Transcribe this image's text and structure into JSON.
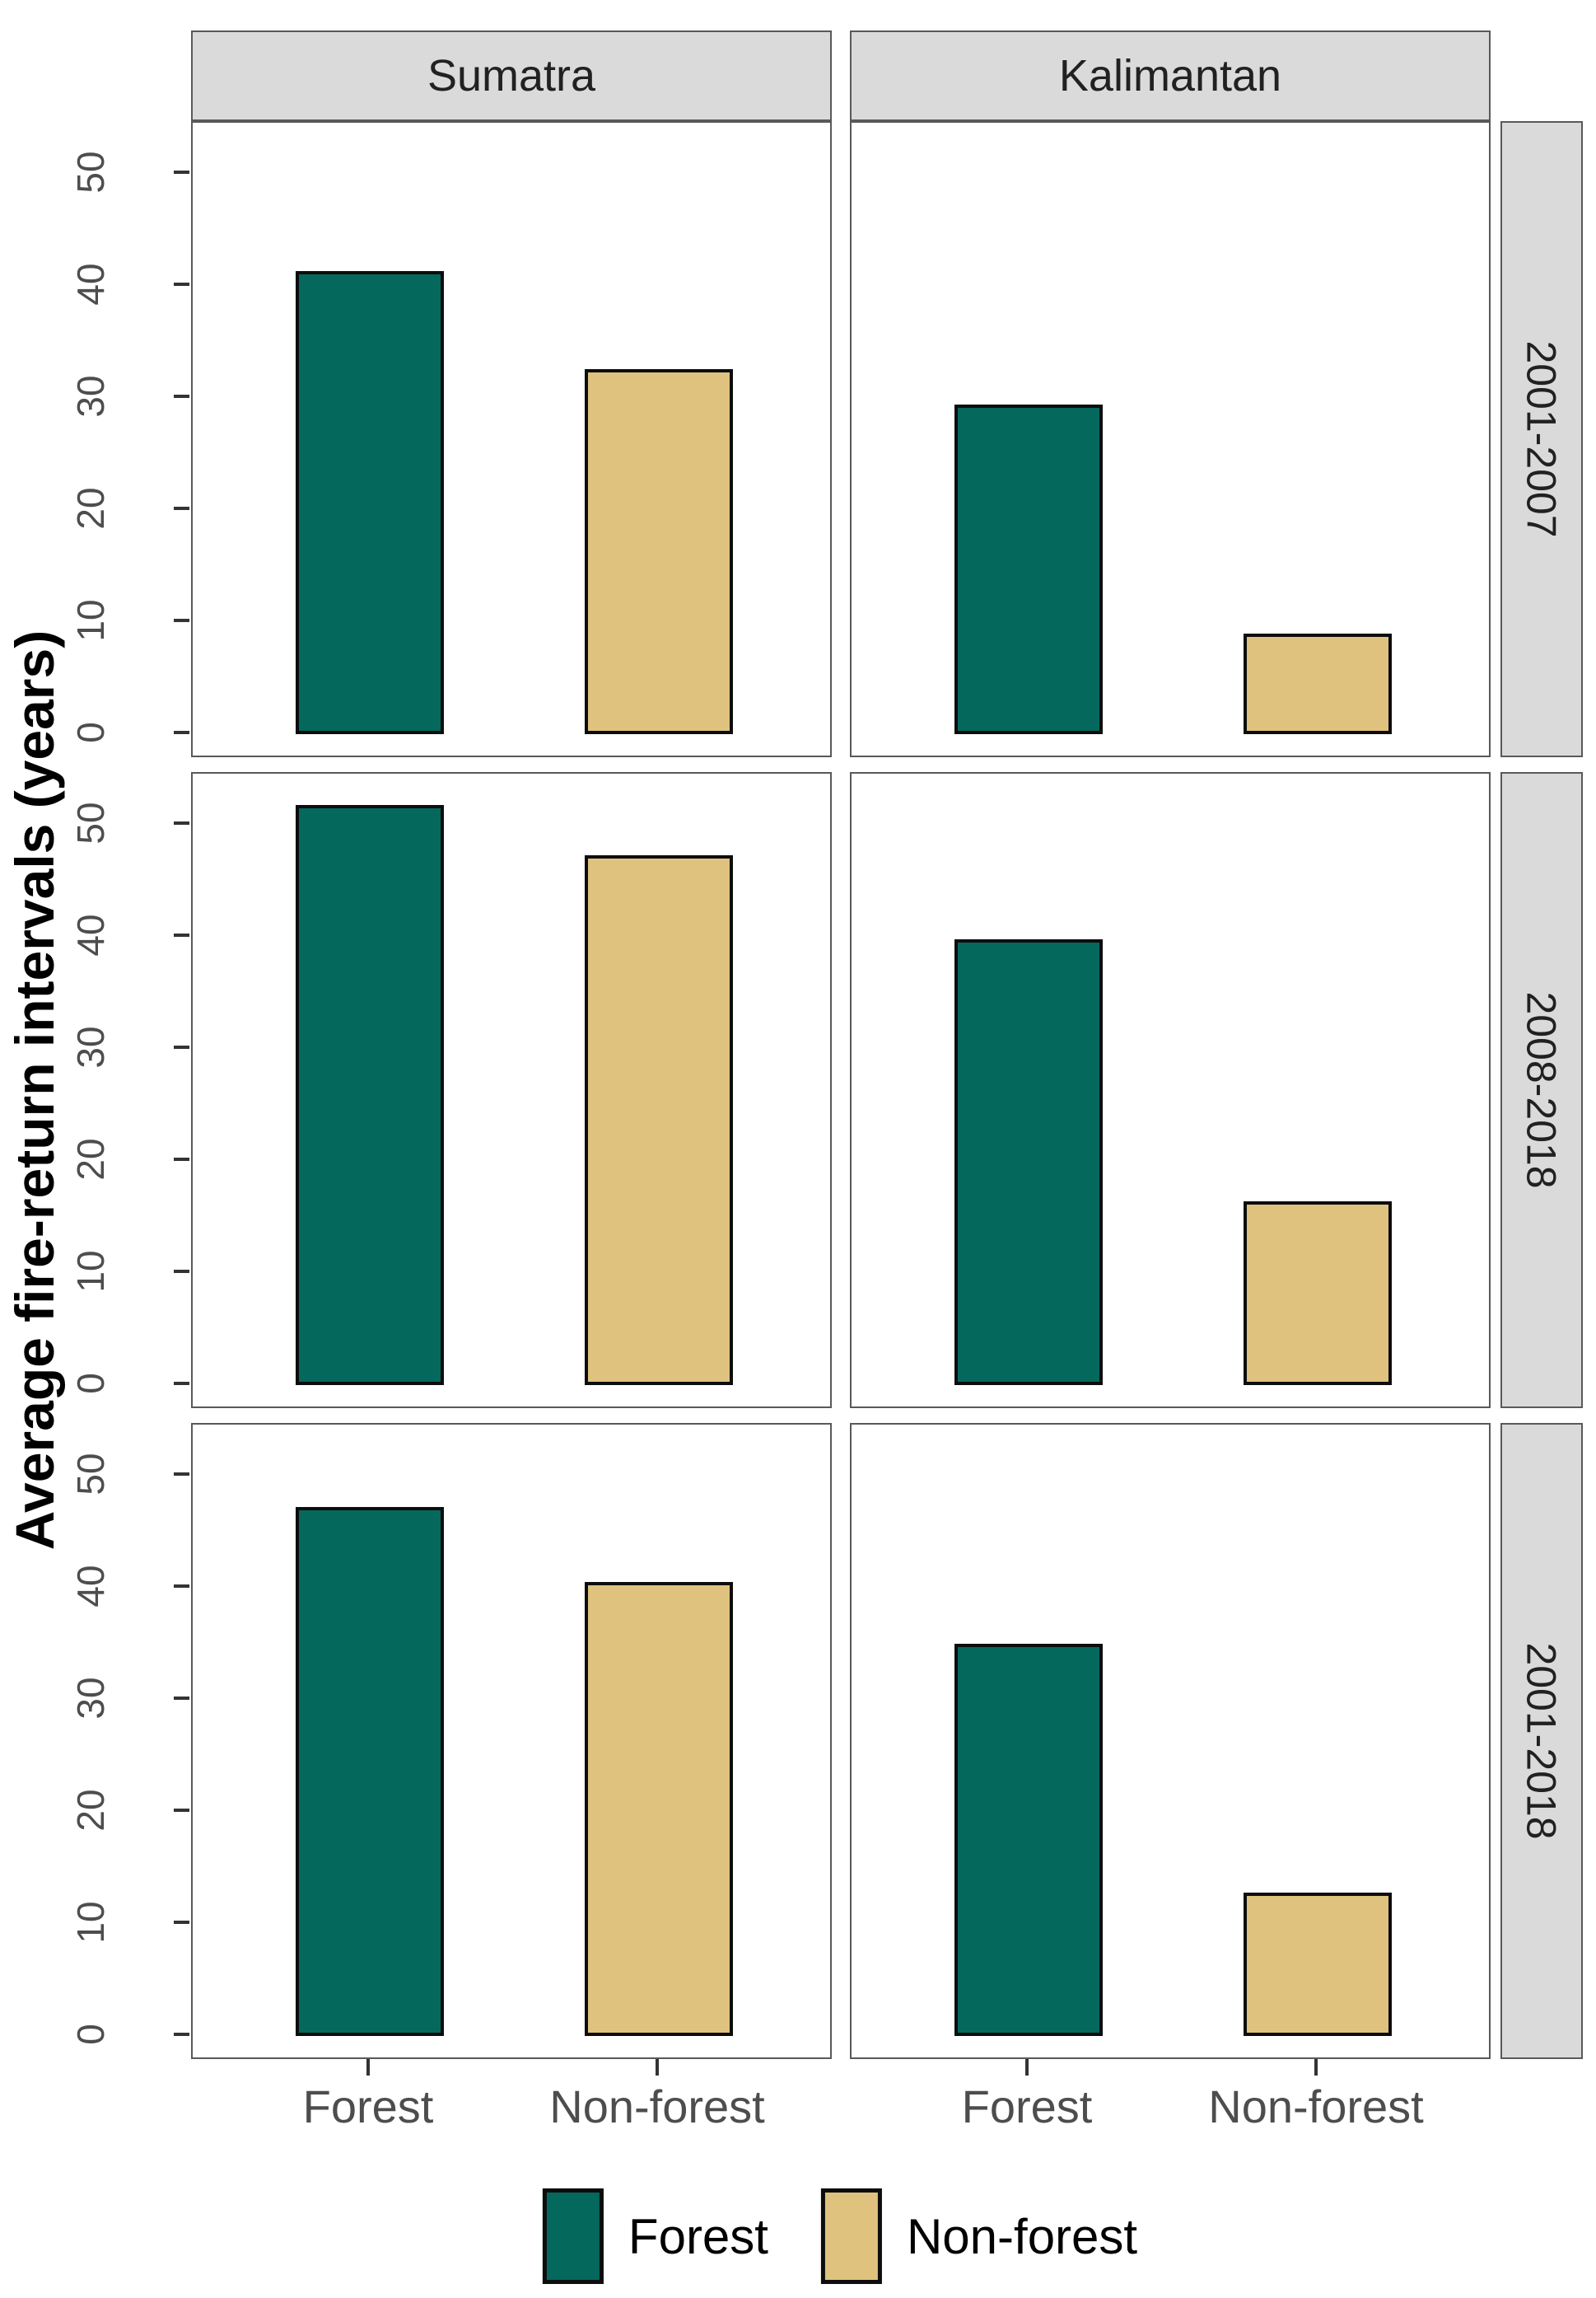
{
  "chart_data": {
    "type": "bar",
    "title": "",
    "ylabel": "Average fire-return intervals (years)",
    "xlabel": "",
    "ylim": [
      0,
      54.5
    ],
    "yticks": [
      0,
      10,
      20,
      30,
      40,
      50
    ],
    "grid": false,
    "categories": [
      "Forest",
      "Non-forest"
    ],
    "facet_columns": [
      "Sumatra",
      "Kalimantan"
    ],
    "facet_rows": [
      "2001-2007",
      "2008-2018",
      "2001-2018"
    ],
    "legend": {
      "position": "bottom",
      "entries": [
        "Forest",
        "Non-forest"
      ]
    },
    "colors": {
      "Forest": "#04685D",
      "Non-forest": "#DFC27D"
    },
    "panels": [
      {
        "column": "Sumatra",
        "row": "2001-2007",
        "values": {
          "Forest": 41.3,
          "Non-forest": 32.6
        }
      },
      {
        "column": "Kalimantan",
        "row": "2001-2007",
        "values": {
          "Forest": 29.4,
          "Non-forest": 9.0
        }
      },
      {
        "column": "Sumatra",
        "row": "2008-2018",
        "values": {
          "Forest": 51.8,
          "Non-forest": 47.3
        }
      },
      {
        "column": "Kalimantan",
        "row": "2008-2018",
        "values": {
          "Forest": 39.8,
          "Non-forest": 16.4
        }
      },
      {
        "column": "Sumatra",
        "row": "2001-2018",
        "values": {
          "Forest": 47.2,
          "Non-forest": 40.5
        }
      },
      {
        "column": "Kalimantan",
        "row": "2001-2018",
        "values": {
          "Forest": 35.0,
          "Non-forest": 12.8
        }
      }
    ]
  },
  "style": {
    "strip_bg": "#DADADA",
    "panel_border": "#595959",
    "bar_border": "#0D0D0D",
    "tick_color": "#333333",
    "axis_text_color": "#4D4D4D",
    "strip_text_color": "#212121",
    "title_color": "#000000"
  }
}
